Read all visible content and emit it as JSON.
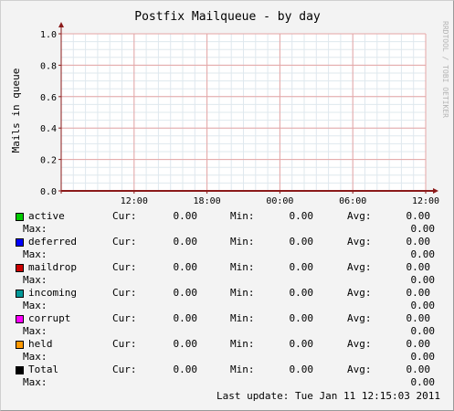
{
  "chart_data": {
    "type": "line",
    "title": "Postfix Mailqueue - by day",
    "ylabel": "Mails in queue",
    "watermark": "RRDTOOL / TOBI OETIKER",
    "ylim": [
      0,
      1.0
    ],
    "yticks": [
      "0.0",
      "0.2",
      "0.4",
      "0.6",
      "0.8",
      "1.0"
    ],
    "xticks": [
      "12:00",
      "18:00",
      "00:00",
      "06:00",
      "12:00"
    ],
    "grid": true,
    "background_color": "#ffffff",
    "major_grid_color": "#e6a5a5",
    "minor_grid_color": "#dfe8ee",
    "axis_color": "#8b1a1a",
    "series": [
      {
        "name": "active",
        "color": "#00cc00",
        "values": [
          0,
          0,
          0,
          0,
          0
        ]
      },
      {
        "name": "deferred",
        "color": "#0000ff",
        "values": [
          0,
          0,
          0,
          0,
          0
        ]
      },
      {
        "name": "maildrop",
        "color": "#cc0000",
        "values": [
          0,
          0,
          0,
          0,
          0
        ]
      },
      {
        "name": "incoming",
        "color": "#009999",
        "values": [
          0,
          0,
          0,
          0,
          0
        ]
      },
      {
        "name": "corrupt",
        "color": "#ff00ff",
        "values": [
          0,
          0,
          0,
          0,
          0
        ]
      },
      {
        "name": "held",
        "color": "#ff9900",
        "values": [
          0,
          0,
          0,
          0,
          0
        ]
      },
      {
        "name": "Total",
        "color": "#000000",
        "values": [
          0,
          0,
          0,
          0,
          0
        ]
      }
    ]
  },
  "legend": {
    "cur_label": "Cur:",
    "min_label": "Min:",
    "avg_label": "Avg:",
    "max_label": "Max:",
    "rows": [
      {
        "name": "active",
        "color": "#00cc00",
        "cur": "0.00",
        "min": "0.00",
        "avg": "0.00",
        "max": "0.00"
      },
      {
        "name": "deferred",
        "color": "#0000ff",
        "cur": "0.00",
        "min": "0.00",
        "avg": "0.00",
        "max": "0.00"
      },
      {
        "name": "maildrop",
        "color": "#cc0000",
        "cur": "0.00",
        "min": "0.00",
        "avg": "0.00",
        "max": "0.00"
      },
      {
        "name": "incoming",
        "color": "#009999",
        "cur": "0.00",
        "min": "0.00",
        "avg": "0.00",
        "max": "0.00"
      },
      {
        "name": "corrupt",
        "color": "#ff00ff",
        "cur": "0.00",
        "min": "0.00",
        "avg": "0.00",
        "max": "0.00"
      },
      {
        "name": "held",
        "color": "#ff9900",
        "cur": "0.00",
        "min": "0.00",
        "avg": "0.00",
        "max": "0.00"
      },
      {
        "name": "Total",
        "color": "#000000",
        "cur": "0.00",
        "min": "0.00",
        "avg": "0.00",
        "max": "0.00"
      }
    ]
  },
  "last_update": "Last update: Tue Jan 11 12:15:03 2011"
}
